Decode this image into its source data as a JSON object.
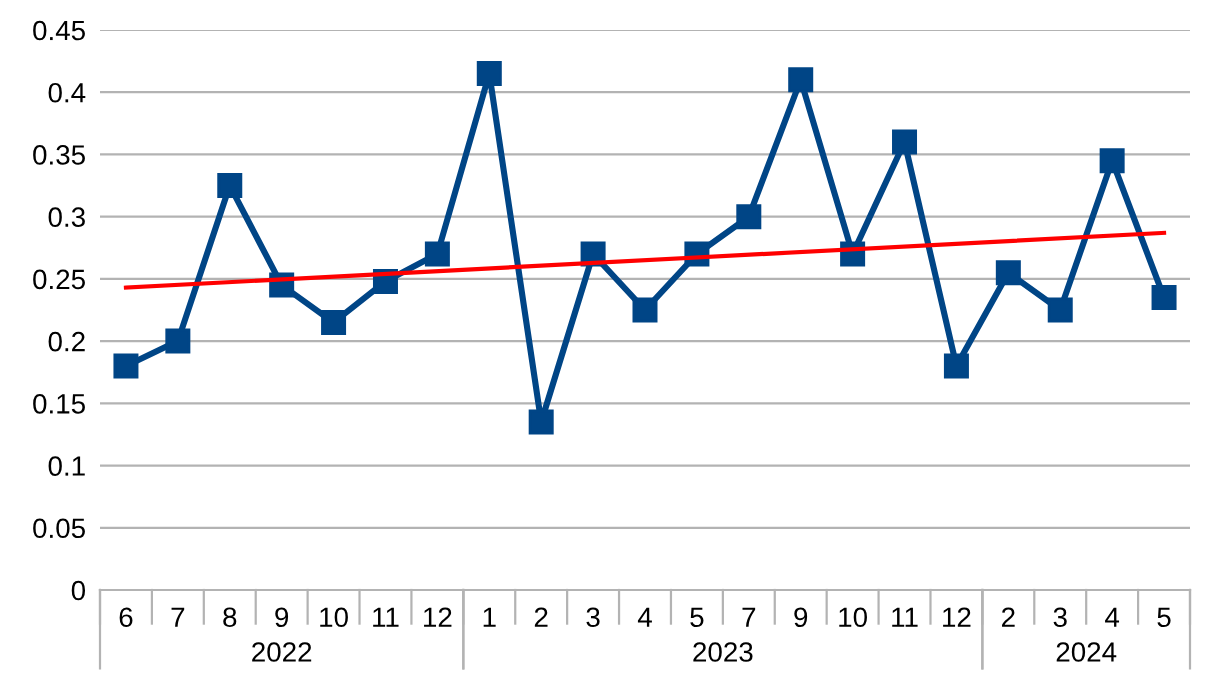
{
  "chart_data": {
    "type": "line",
    "categories": [
      "6",
      "7",
      "8",
      "9",
      "10",
      "11",
      "12",
      "1",
      "2",
      "3",
      "4",
      "5",
      "7",
      "9",
      "10",
      "11",
      "12",
      "2",
      "3",
      "4",
      "5"
    ],
    "annotations": [
      "2022",
      "2023",
      "2024"
    ],
    "series": [
      {
        "color": "#004586",
        "marker": "square",
        "values": [
          0.18,
          0.2,
          0.325,
          0.245,
          0.215,
          0.248,
          0.27,
          0.415,
          0.135,
          0.27,
          0.225,
          0.27,
          0.3,
          0.41,
          0.27,
          0.36,
          0.18,
          0.255,
          0.225,
          0.345,
          0.235
        ]
      },
      {
        "color": "#ff0000",
        "marker": "none",
        "values": [
          0.243,
          null,
          null,
          null,
          null,
          null,
          null,
          null,
          null,
          null,
          null,
          null,
          null,
          null,
          null,
          null,
          null,
          null,
          null,
          null,
          0.287
        ]
      }
    ],
    "ylim": [
      0,
      0.45
    ],
    "yticks": [
      0,
      0.05,
      0.1,
      0.15,
      0.2,
      0.25,
      0.3,
      0.35,
      0.4,
      0.45
    ],
    "grid": "y",
    "legend": false,
    "line_style": "solid"
  }
}
